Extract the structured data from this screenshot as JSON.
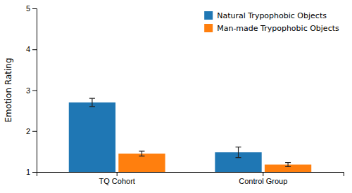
{
  "chart_data": {
    "type": "bar",
    "categories": [
      "TQ Cohort",
      "Control Group"
    ],
    "series": [
      {
        "name": "Natural Trypophobic Objects",
        "values": [
          2.7,
          1.48
        ],
        "errors": [
          0.1,
          0.13
        ]
      },
      {
        "name": "Man-made Trypophobic Objects",
        "values": [
          1.45,
          1.18
        ],
        "errors": [
          0.06,
          0.05
        ]
      }
    ],
    "ylabel": "Emotion Rating",
    "ylim": [
      1,
      5
    ],
    "yticks": [
      1,
      2,
      3,
      4,
      5
    ],
    "legend": "upper right"
  }
}
